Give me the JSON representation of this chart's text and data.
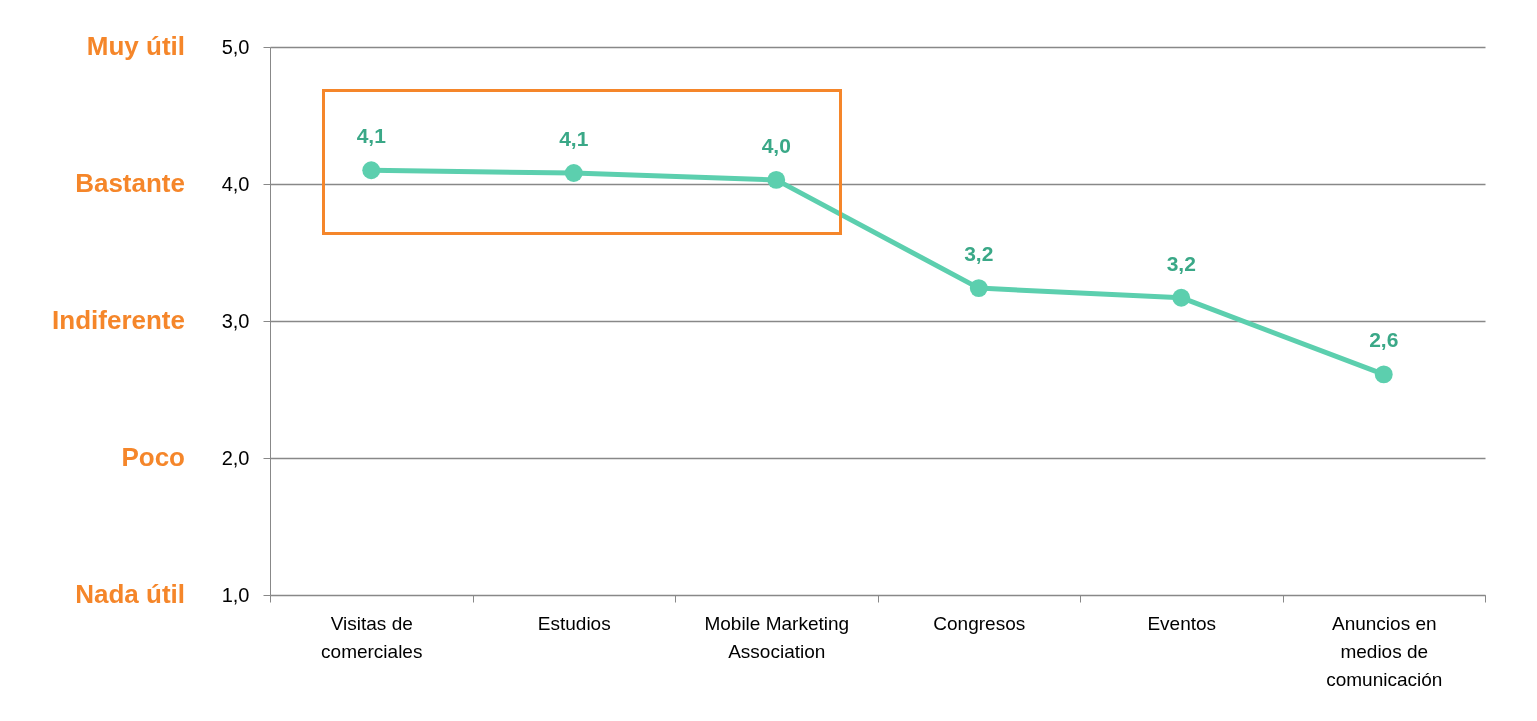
{
  "chart_data": {
    "type": "line",
    "categories": [
      "Visitas de comerciales",
      "Estudios",
      "Mobile Marketing Association",
      "Congresos",
      "Eventos",
      "Anuncios en medios de comunicación"
    ],
    "series": [
      {
        "color": "#5ccfae",
        "values": [
          4.1,
          4.08,
          4.03,
          3.24,
          3.17,
          2.61
        ],
        "value_labels": [
          "4,1",
          "4,1",
          "4,0",
          "3,2",
          "3,2",
          "2,6"
        ]
      }
    ],
    "ylim": [
      1,
      5
    ],
    "yticks": [
      {
        "value": 1,
        "label": "1,0"
      },
      {
        "value": 2,
        "label": "2,0"
      },
      {
        "value": 3,
        "label": "3,0"
      },
      {
        "value": 4,
        "label": "4,0"
      },
      {
        "value": 5,
        "label": "5,0"
      }
    ],
    "annotations": [
      "Muy útil",
      "Bastante",
      "Indiferente",
      "Poco",
      "Nada útil"
    ],
    "grid": "y",
    "marker": "circle",
    "line_style": "solid"
  }
}
